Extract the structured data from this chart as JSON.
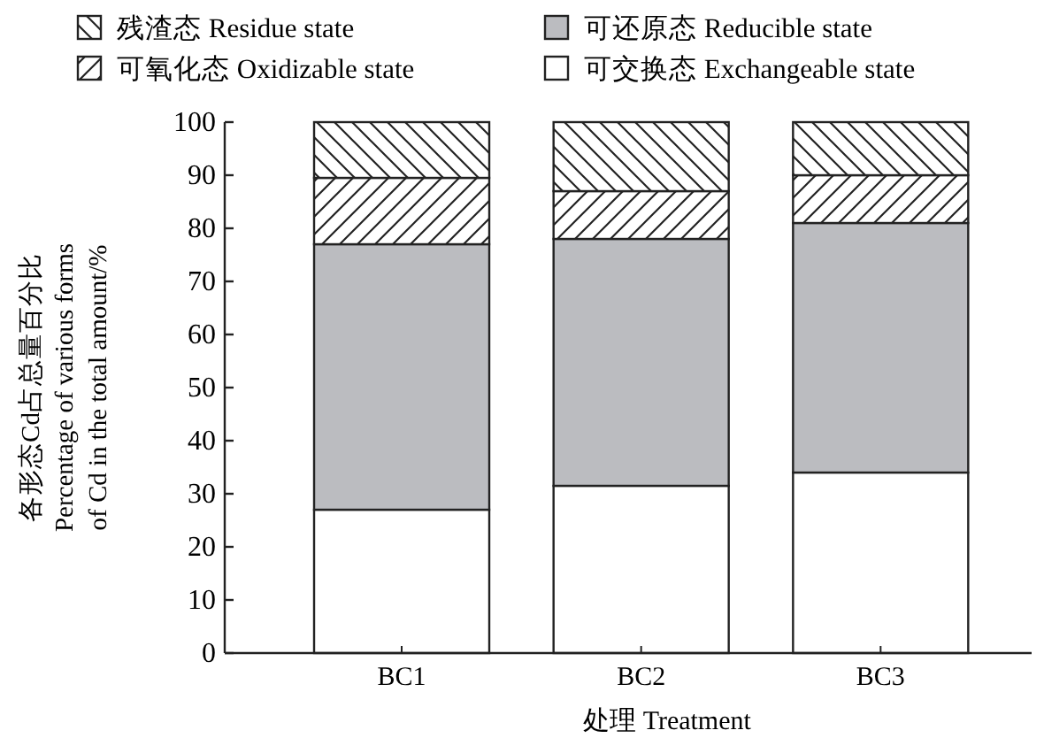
{
  "chart_data": {
    "type": "bar",
    "stacked": true,
    "categories": [
      "BC1",
      "BC2",
      "BC3"
    ],
    "xlabel": "处理 Treatment",
    "ylabel": "各形态Cd占总量百分比\nPercentage of various forms\nof Cd in the total amount/%",
    "ylim": [
      0,
      100
    ],
    "yticks": [
      0,
      10,
      20,
      30,
      40,
      50,
      60,
      70,
      80,
      90,
      100
    ],
    "legend": "top",
    "grid": false,
    "series": [
      {
        "name": "可交换态 Exchangeable state",
        "color": "#ffffff",
        "values": [
          27,
          31.5,
          34
        ]
      },
      {
        "name": "可还原态 Reducible state",
        "color": "#bbbcc0",
        "values": [
          50,
          46.5,
          47
        ]
      },
      {
        "name": "可氧化态 Oxidizable state",
        "color": "#222222",
        "values": [
          12.5,
          9,
          9
        ]
      },
      {
        "name": "残渣态 Residue state",
        "color": "#222222",
        "values": [
          10.5,
          13,
          10
        ]
      }
    ]
  }
}
